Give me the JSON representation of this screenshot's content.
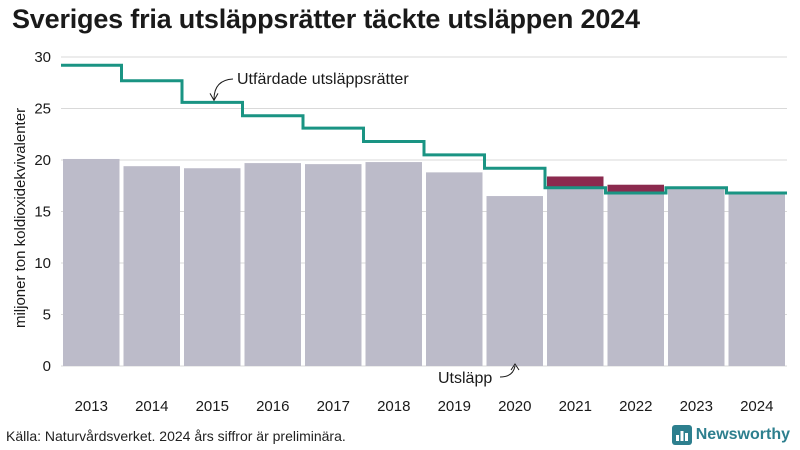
{
  "colors": {
    "emissions": "#bcbbc9",
    "surplus": "#8b2a4e",
    "allowances": "#1a9483",
    "grid": "#d9d9d9",
    "brand": "#2d7f8e"
  },
  "brand": {
    "name": "Newsworthy",
    "icon": "newsworthy-logo-icon"
  },
  "source": "Källa: Naturvårdsverket. 2024 års siffror är preliminära.",
  "chart_data": {
    "type": "bar",
    "title": "Sveriges fria utsläppsrätter täckte utsläppen 2024",
    "ylabel": "miljoner ton koldioxidekvivalenter",
    "xlabel": "",
    "ylim": [
      0,
      30
    ],
    "yticks": [
      0,
      5,
      10,
      15,
      20,
      25,
      30
    ],
    "grid": true,
    "categories": [
      "2013",
      "2014",
      "2015",
      "2016",
      "2017",
      "2018",
      "2019",
      "2020",
      "2021",
      "2022",
      "2023",
      "2024"
    ],
    "series": [
      {
        "name": "Utsläpp",
        "type": "bar",
        "values": [
          20.1,
          19.4,
          19.2,
          19.7,
          19.6,
          19.8,
          18.8,
          16.5,
          18.4,
          17.6,
          17.2,
          16.7
        ]
      },
      {
        "name": "Utfärdade utsläppsrätter",
        "type": "step",
        "values": [
          29.2,
          27.7,
          25.6,
          24.3,
          23.1,
          21.8,
          20.5,
          19.2,
          17.3,
          16.8,
          17.3,
          16.8
        ]
      }
    ],
    "annotations": [
      {
        "text": "Utfärdade utsläppsrätter",
        "target": "allowances"
      },
      {
        "text": "Utsläpp",
        "target": "emissions"
      }
    ]
  }
}
